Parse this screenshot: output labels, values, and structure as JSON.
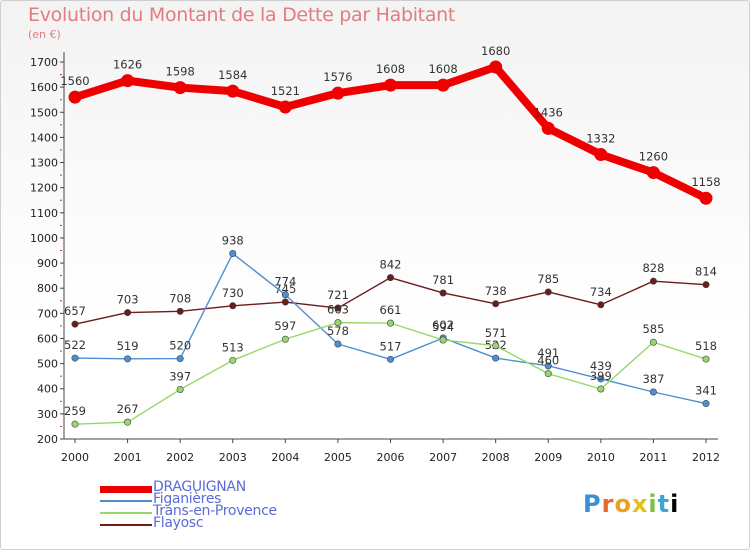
{
  "header": {
    "title": "Evolution du Montant de la Dette par Habitant",
    "subtitle": "(en €)"
  },
  "logo": {
    "text": "Proxiti"
  },
  "chart_data": {
    "type": "line",
    "title": "Evolution du Montant de la Dette par Habitant",
    "subtitle": "(en €)",
    "x": [
      "2000",
      "2001",
      "2002",
      "2003",
      "2004",
      "2005",
      "2006",
      "2007",
      "2008",
      "2009",
      "2010",
      "2011",
      "2012"
    ],
    "yticks": [
      200,
      300,
      400,
      500,
      600,
      700,
      800,
      900,
      1000,
      1100,
      1200,
      1300,
      1400,
      1500,
      1600,
      1700
    ],
    "ylim": [
      200,
      1700
    ],
    "grid": false,
    "legend_position": "bottom-left",
    "series": [
      {
        "name": "DRAGUIGNAN",
        "color": "#ee0000",
        "values": [
          1560,
          1626,
          1598,
          1584,
          1521,
          1576,
          1608,
          1608,
          1680,
          1436,
          1332,
          1260,
          1158
        ]
      },
      {
        "name": "Figanières",
        "color": "#4f8fd0",
        "values": [
          522,
          519,
          520,
          938,
          774,
          578,
          517,
          602,
          522,
          491,
          439,
          387,
          341
        ]
      },
      {
        "name": "Trans-en-Provence",
        "color": "#96d86a",
        "values": [
          259,
          267,
          397,
          513,
          597,
          663,
          661,
          594,
          571,
          460,
          399,
          585,
          518
        ]
      },
      {
        "name": "Flayosc",
        "color": "#6b1c1c",
        "values": [
          657,
          703,
          708,
          730,
          745,
          721,
          842,
          781,
          738,
          785,
          734,
          828,
          814
        ]
      }
    ]
  }
}
